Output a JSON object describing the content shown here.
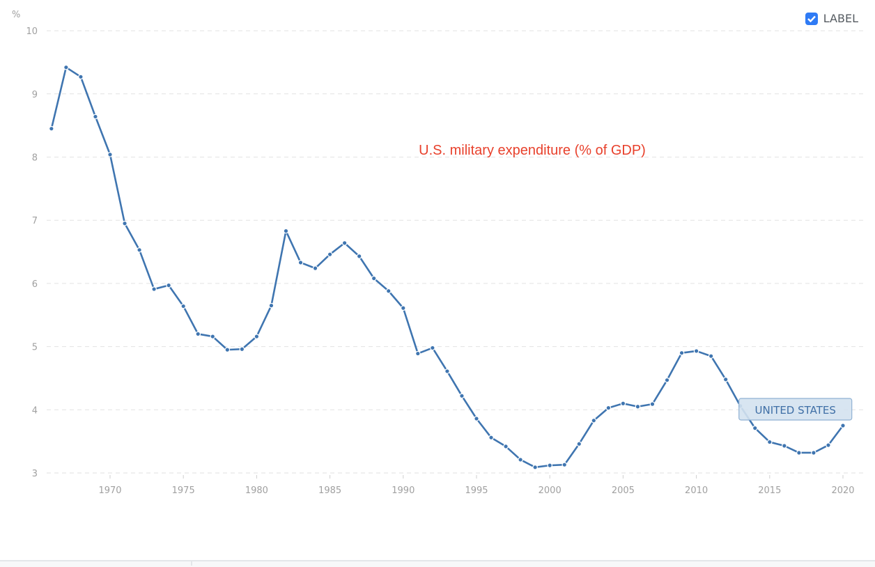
{
  "legend": {
    "label": "LABEL",
    "checked": true,
    "checkbox_color": "#2f7bf5"
  },
  "chart_data": {
    "type": "line",
    "title": "U.S. military expenditure (% of GDP)",
    "title_color": "#e8412c",
    "ylabel": "%",
    "xlabel": "",
    "ylim": [
      3,
      10
    ],
    "xlim": [
      1966,
      2020
    ],
    "yticks": [
      "3",
      "4",
      "5",
      "6",
      "7",
      "8",
      "9",
      "10"
    ],
    "xticks": [
      "1970",
      "1975",
      "1980",
      "1985",
      "1990",
      "1995",
      "2000",
      "2005",
      "2010",
      "2015",
      "2020"
    ],
    "grid": true,
    "series": [
      {
        "name": "UNITED STATES",
        "color": "#3f75b0",
        "x": [
          1966,
          1967,
          1968,
          1969,
          1970,
          1971,
          1972,
          1973,
          1974,
          1975,
          1976,
          1977,
          1978,
          1979,
          1980,
          1981,
          1982,
          1983,
          1984,
          1985,
          1986,
          1987,
          1988,
          1989,
          1990,
          1991,
          1992,
          1993,
          1994,
          1995,
          1996,
          1997,
          1998,
          1999,
          2000,
          2001,
          2002,
          2003,
          2004,
          2005,
          2006,
          2007,
          2008,
          2009,
          2010,
          2011,
          2012,
          2013,
          2014,
          2015,
          2016,
          2017,
          2018,
          2019,
          2020
        ],
        "values": [
          8.45,
          9.42,
          9.27,
          8.64,
          8.04,
          6.95,
          6.53,
          5.91,
          5.97,
          5.64,
          5.2,
          5.16,
          4.95,
          4.96,
          5.16,
          5.65,
          6.83,
          6.33,
          6.24,
          6.46,
          6.64,
          6.43,
          6.08,
          5.88,
          5.61,
          4.89,
          4.98,
          4.61,
          4.22,
          3.86,
          3.56,
          3.42,
          3.21,
          3.09,
          3.12,
          3.13,
          3.46,
          3.83,
          4.03,
          4.1,
          4.05,
          4.09,
          4.47,
          4.9,
          4.93,
          4.85,
          4.48,
          4.06,
          3.71,
          3.49,
          3.43,
          3.32,
          3.32,
          3.44,
          3.75
        ]
      }
    ],
    "series_label": {
      "text": "UNITED STATES",
      "year": 2013
    }
  }
}
